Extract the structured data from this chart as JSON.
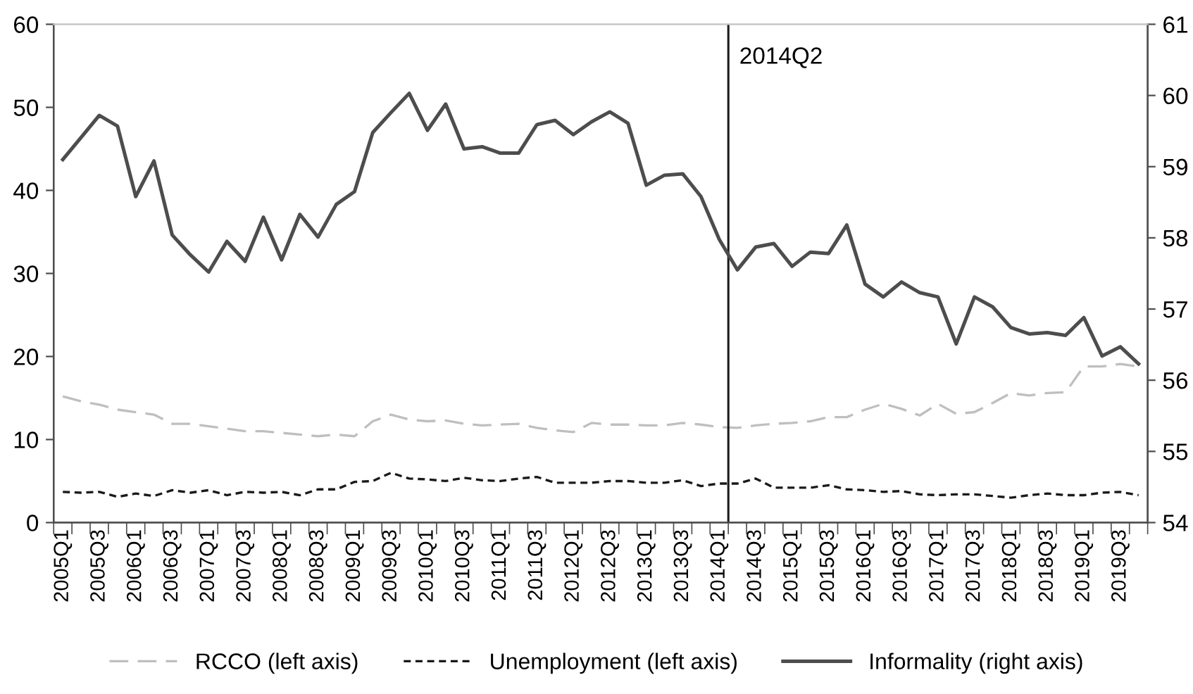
{
  "chart_data": {
    "type": "line",
    "categories": [
      "2005Q1",
      null,
      "2005Q3",
      null,
      "2006Q1",
      null,
      "2006Q3",
      null,
      "2007Q1",
      null,
      "2007Q3",
      null,
      "2008Q1",
      null,
      "2008Q3",
      null,
      "2009Q1",
      null,
      "2009Q3",
      null,
      "2010Q1",
      null,
      "2010Q3",
      null,
      "2011Q1",
      null,
      "2011Q3",
      null,
      "2012Q1",
      null,
      "2012Q3",
      null,
      "2013Q1",
      null,
      "2013Q3",
      null,
      "2014Q1",
      null,
      "2014Q3",
      null,
      "2015Q1",
      null,
      "2015Q3",
      null,
      "2016Q1",
      null,
      "2016Q3",
      null,
      "2017Q1",
      null,
      "2017Q3",
      null,
      "2018Q1",
      null,
      "2018Q3",
      null,
      "2019Q1",
      null,
      "2019Q3",
      null
    ],
    "series": [
      {
        "name": "RCCO (left axis)",
        "color": "#bfbfbf",
        "line_style": "dashed",
        "values": [
          15.2,
          14.6,
          14.2,
          13.6,
          13.3,
          13.0,
          11.9,
          11.9,
          11.6,
          11.3,
          11.0,
          11.0,
          10.8,
          10.6,
          10.4,
          10.6,
          10.4,
          12.2,
          13.0,
          12.4,
          12.2,
          12.3,
          11.9,
          11.7,
          11.8,
          11.9,
          11.4,
          11.1,
          10.9,
          12.0,
          11.8,
          11.8,
          11.7,
          11.7,
          12.0,
          11.8,
          11.5,
          11.4,
          11.7,
          11.9,
          12.0,
          12.2,
          12.7,
          12.7,
          13.6,
          14.3,
          13.7,
          12.9,
          14.3,
          13.1,
          13.3,
          14.4,
          15.6,
          15.3,
          15.6,
          15.7,
          18.8,
          18.8,
          19.1,
          18.8
        ]
      },
      {
        "name": "Unemployment (left axis)",
        "color": "#1a1a1a",
        "line_style": "dotted",
        "values": [
          3.7,
          3.6,
          3.7,
          3.1,
          3.5,
          3.2,
          3.9,
          3.6,
          3.9,
          3.3,
          3.7,
          3.6,
          3.7,
          3.3,
          4.0,
          4.0,
          4.9,
          5.0,
          6.0,
          5.3,
          5.2,
          5.0,
          5.4,
          5.1,
          5.0,
          5.3,
          5.5,
          4.8,
          4.8,
          4.8,
          5.0,
          5.0,
          4.8,
          4.8,
          5.1,
          4.4,
          4.7,
          4.7,
          5.3,
          4.2,
          4.2,
          4.2,
          4.5,
          4.0,
          3.9,
          3.7,
          3.8,
          3.4,
          3.3,
          3.4,
          3.4,
          3.2,
          3.0,
          3.3,
          3.5,
          3.3,
          3.3,
          3.6,
          3.7,
          3.3
        ]
      },
      {
        "name": "Informality (right axis)",
        "color": "#4d4d4d",
        "line_style": "solid",
        "axis": "y2",
        "values": [
          59.1,
          59.41,
          59.72,
          59.57,
          58.58,
          59.08,
          58.04,
          57.76,
          57.52,
          57.95,
          57.67,
          58.29,
          57.69,
          58.33,
          58.01,
          58.47,
          58.65,
          59.48,
          59.76,
          60.03,
          59.51,
          59.88,
          59.25,
          59.28,
          59.19,
          59.19,
          59.59,
          59.65,
          59.45,
          59.63,
          59.77,
          59.61,
          58.74,
          58.88,
          58.9,
          58.58,
          57.98,
          57.55,
          57.87,
          57.92,
          57.6,
          57.8,
          57.78,
          58.18,
          57.35,
          57.17,
          57.38,
          57.23,
          57.17,
          56.51,
          57.17,
          57.03,
          56.74,
          56.65,
          56.67,
          56.63,
          56.88,
          56.34,
          56.47,
          56.23
        ]
      }
    ],
    "ylim": [
      0,
      60
    ],
    "yticks": [
      0,
      10,
      20,
      30,
      40,
      50,
      60
    ],
    "y2lim": [
      54,
      61
    ],
    "y2ticks": [
      54,
      55,
      56,
      57,
      58,
      59,
      60,
      61
    ],
    "annotations": [
      "2014Q2"
    ],
    "legend": "bottom",
    "grid": false
  }
}
